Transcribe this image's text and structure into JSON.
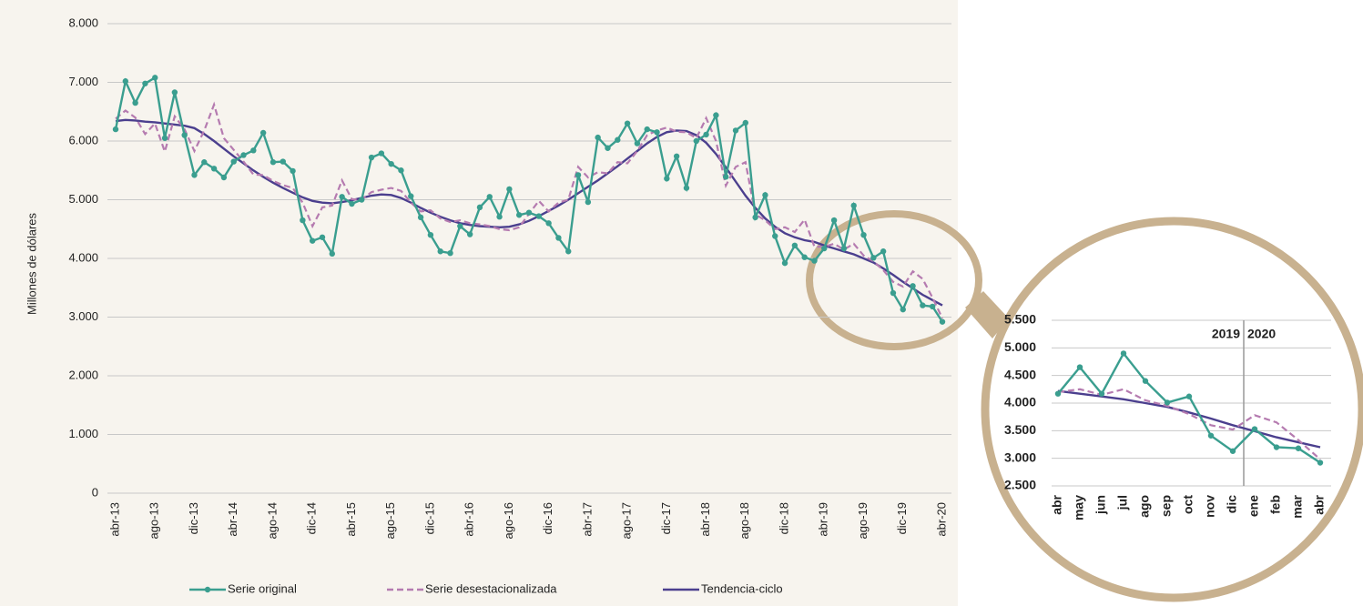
{
  "chart_data": [
    {
      "type": "line",
      "y_label": "Millones de dólares",
      "categories": [
        "abr-13",
        null,
        null,
        null,
        "ago-13",
        null,
        null,
        null,
        "dic-13",
        null,
        null,
        null,
        "abr-14",
        null,
        null,
        null,
        "ago-14",
        null,
        null,
        null,
        "dic-14",
        null,
        null,
        null,
        "abr-15",
        null,
        null,
        null,
        "ago-15",
        null,
        null,
        null,
        "dic-15",
        null,
        null,
        null,
        "abr-16",
        null,
        null,
        null,
        "ago-16",
        null,
        null,
        null,
        "dic-16",
        null,
        null,
        null,
        "abr-17",
        null,
        null,
        null,
        "ago-17",
        null,
        null,
        null,
        "dic-17",
        null,
        null,
        null,
        "abr-18",
        null,
        null,
        null,
        "ago-18",
        null,
        null,
        null,
        "dic-18",
        null,
        null,
        null,
        "abr-19",
        null,
        null,
        null,
        "ago-19",
        null,
        null,
        null,
        "dic-19",
        null,
        null,
        null,
        "abr-20"
      ],
      "series": [
        {
          "name": "Serie original",
          "color": "#3a9e8f",
          "markers": true,
          "dash": false,
          "values": [
            6200,
            7020,
            6650,
            6980,
            7080,
            6050,
            6830,
            6100,
            5420,
            5640,
            5530,
            5380,
            5650,
            5760,
            5840,
            6140,
            5640,
            5650,
            5490,
            4650,
            4300,
            4360,
            4080,
            5050,
            4930,
            5000,
            5720,
            5790,
            5610,
            5500,
            5060,
            4700,
            4400,
            4120,
            4090,
            4550,
            4410,
            4870,
            5050,
            4710,
            5180,
            4740,
            4780,
            4720,
            4600,
            4350,
            4120,
            5420,
            4960,
            6060,
            5880,
            6020,
            6300,
            5960,
            6200,
            6150,
            5360,
            5740,
            5200,
            6000,
            6110,
            6440,
            5390,
            6180,
            6310,
            4700,
            5080,
            4380,
            3920,
            4220,
            4020,
            3960,
            4170,
            4650,
            4170,
            4900,
            4400,
            4010,
            4120,
            3410,
            3130,
            3530,
            3200,
            3180,
            2920
          ]
        },
        {
          "name": "Serie desestacionalizada",
          "color": "#b57bb0",
          "markers": false,
          "dash": true,
          "values": [
            6380,
            6520,
            6400,
            6120,
            6300,
            5820,
            6420,
            6200,
            5830,
            6180,
            6620,
            6050,
            5850,
            5650,
            5430,
            5420,
            5320,
            5250,
            5200,
            4950,
            4550,
            4870,
            4900,
            5330,
            5010,
            5000,
            5130,
            5170,
            5200,
            5150,
            4950,
            4800,
            4820,
            4680,
            4620,
            4650,
            4600,
            4580,
            4550,
            4500,
            4480,
            4530,
            4760,
            4980,
            4800,
            4950,
            5000,
            5560,
            5380,
            5470,
            5450,
            5640,
            5620,
            5830,
            6100,
            6180,
            6230,
            6160,
            6150,
            6050,
            6390,
            6000,
            5240,
            5560,
            5640,
            4750,
            4650,
            4500,
            4530,
            4450,
            4660,
            4200,
            4200,
            4250,
            4150,
            4250,
            4050,
            3950,
            3800,
            3600,
            3520,
            3780,
            3650,
            3330,
            2980
          ]
        },
        {
          "name": "Tendencia-ciclo",
          "color": "#4b3f8e",
          "markers": false,
          "dash": false,
          "values": [
            6340,
            6360,
            6350,
            6330,
            6320,
            6300,
            6280,
            6260,
            6220,
            6120,
            6000,
            5870,
            5740,
            5620,
            5500,
            5390,
            5290,
            5200,
            5120,
            5040,
            4980,
            4950,
            4940,
            4960,
            4990,
            5030,
            5070,
            5090,
            5080,
            5030,
            4950,
            4860,
            4780,
            4710,
            4650,
            4600,
            4570,
            4550,
            4540,
            4530,
            4540,
            4580,
            4640,
            4720,
            4810,
            4900,
            5000,
            5110,
            5220,
            5330,
            5450,
            5570,
            5700,
            5830,
            5960,
            6070,
            6150,
            6180,
            6170,
            6100,
            5970,
            5780,
            5550,
            5310,
            5070,
            4860,
            4680,
            4540,
            4430,
            4360,
            4310,
            4280,
            4220,
            4170,
            4120,
            4070,
            4000,
            3930,
            3830,
            3720,
            3600,
            3490,
            3380,
            3290,
            3200
          ]
        }
      ],
      "ylim": [
        0,
        8000
      ],
      "yticks": [
        0,
        {
          "value": 1000,
          "label": "1.000"
        },
        {
          "value": 2000,
          "label": "2.000"
        },
        {
          "value": 3000,
          "label": "3.000"
        },
        {
          "value": 4000,
          "label": "4.000"
        },
        {
          "value": 5000,
          "label": "5.000"
        },
        {
          "value": 6000,
          "label": "6.000"
        },
        {
          "value": 7000,
          "label": "7.000"
        },
        {
          "value": 8000,
          "label": "8.000"
        }
      ],
      "grid": true,
      "legend": "bottom"
    },
    {
      "type": "line",
      "categories": [
        "abr",
        "may",
        "jun",
        "jul",
        "ago",
        "sep",
        "oct",
        "nov",
        "dic",
        "ene",
        "feb",
        "mar",
        "abr"
      ],
      "annotations": [
        "2019",
        "2020"
      ],
      "series": [
        {
          "color": "#3a9e8f",
          "markers": true,
          "dash": false,
          "values": [
            4170,
            4650,
            4170,
            4900,
            4400,
            4010,
            4120,
            3410,
            3130,
            3530,
            3200,
            3180,
            2920
          ]
        },
        {
          "color": "#b57bb0",
          "markers": false,
          "dash": true,
          "values": [
            4200,
            4250,
            4150,
            4250,
            4050,
            3950,
            3800,
            3600,
            3520,
            3780,
            3650,
            3330,
            2980
          ]
        },
        {
          "color": "#4b3f8e",
          "markers": false,
          "dash": false,
          "values": [
            4220,
            4170,
            4120,
            4070,
            4000,
            3930,
            3830,
            3720,
            3600,
            3490,
            3380,
            3290,
            3200
          ]
        }
      ],
      "ylim": [
        2500,
        5500
      ],
      "yticks": [
        {
          "value": 2500,
          "label": "2.500"
        },
        {
          "value": 3000,
          "label": "3.000"
        },
        {
          "value": 3500,
          "label": "3.500"
        },
        {
          "value": 4000,
          "label": "4.000"
        },
        {
          "value": 4500,
          "label": "4.500"
        },
        {
          "value": 5000,
          "label": "5.000"
        },
        {
          "value": 5500,
          "label": "5.500"
        }
      ],
      "grid": true
    }
  ]
}
